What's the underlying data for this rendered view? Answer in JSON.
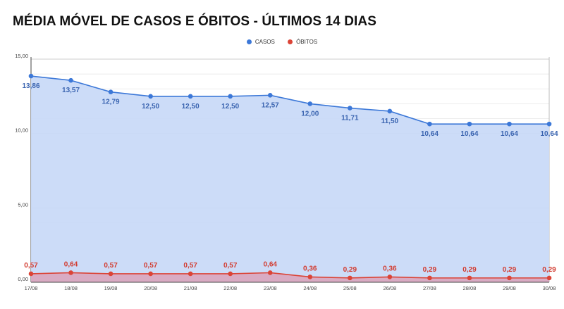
{
  "chart_data": {
    "type": "area",
    "title": "MÉDIA MÓVEL DE CASOS E ÓBITOS - ÚLTIMOS 14 DIAS",
    "categories": [
      "17/08",
      "18/08",
      "19/08",
      "20/08",
      "21/08",
      "22/08",
      "23/08",
      "24/08",
      "25/08",
      "26/08",
      "27/08",
      "28/08",
      "29/08",
      "30/08"
    ],
    "series": [
      {
        "name": "CASOS",
        "color": "#3c78d8",
        "fill": "#c9daf8",
        "values": [
          13.86,
          13.57,
          12.79,
          12.5,
          12.5,
          12.5,
          12.57,
          12.0,
          11.71,
          11.5,
          10.64,
          10.64,
          10.64,
          10.64
        ],
        "labels": [
          "13,86",
          "13,57",
          "12,79",
          "12,50",
          "12,50",
          "12,50",
          "12,57",
          "12,00",
          "11,71",
          "11,50",
          "10,64",
          "10,64",
          "10,64",
          "10,64"
        ]
      },
      {
        "name": "ÓBITOS",
        "color": "#db4437",
        "fill": "#d9a8c0",
        "values": [
          0.57,
          0.64,
          0.57,
          0.57,
          0.57,
          0.57,
          0.64,
          0.36,
          0.29,
          0.36,
          0.29,
          0.29,
          0.29,
          0.29
        ],
        "labels": [
          "0,57",
          "0,64",
          "0,57",
          "0,57",
          "0,57",
          "0,57",
          "0,64",
          "0,36",
          "0,29",
          "0,36",
          "0,29",
          "0,29",
          "0,29",
          "0,29"
        ]
      }
    ],
    "ylim": [
      0,
      15
    ],
    "yticks": [
      0,
      5,
      10,
      15
    ],
    "ytick_labels": [
      "0,00",
      "5,00",
      "10,00",
      "15,00"
    ],
    "grid": true,
    "legend": "top-center"
  }
}
